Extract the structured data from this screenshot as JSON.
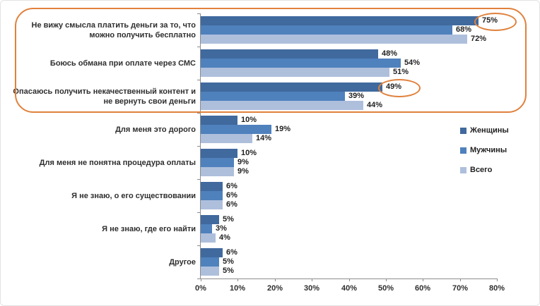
{
  "chart_data": {
    "type": "bar",
    "orientation": "horizontal",
    "title": "",
    "categories": [
      "Не вижу смысла платить деньги за то, что можно получить бесплатно",
      "Боюсь обмана при оплате через СМС",
      "Опасаюсь получить некачественный контент и не вернуть свои деньги",
      "Для меня это дорого",
      "Для меня не понятна процедура оплаты",
      "Я не знаю, о его существовании",
      "Я не знаю, где его найти",
      "Другое"
    ],
    "series": [
      {
        "name": "Женщины",
        "color": "#40699E",
        "values": [
          75,
          48,
          49,
          10,
          10,
          6,
          5,
          6
        ]
      },
      {
        "name": "Мужчины",
        "color": "#4F81BD",
        "values": [
          68,
          54,
          39,
          19,
          9,
          6,
          3,
          5
        ]
      },
      {
        "name": "Всего",
        "color": "#AEBFDC",
        "values": [
          72,
          51,
          44,
          14,
          9,
          6,
          4,
          5
        ]
      }
    ],
    "value_suffix": "%",
    "xlim": [
      0,
      80
    ],
    "x_tick_labels": [
      "0%",
      "10%",
      "20%",
      "30%",
      "40%",
      "50%",
      "60%",
      "70%",
      "80%"
    ],
    "grid": false,
    "legend_position": "right",
    "annotations": {
      "color": "#E0813C",
      "highlight_box_categories": [
        0,
        1,
        2
      ],
      "circled_values": [
        {
          "category": 0,
          "series": 0,
          "label": "75%"
        },
        {
          "category": 2,
          "series": 0,
          "label": "49%"
        }
      ]
    }
  }
}
